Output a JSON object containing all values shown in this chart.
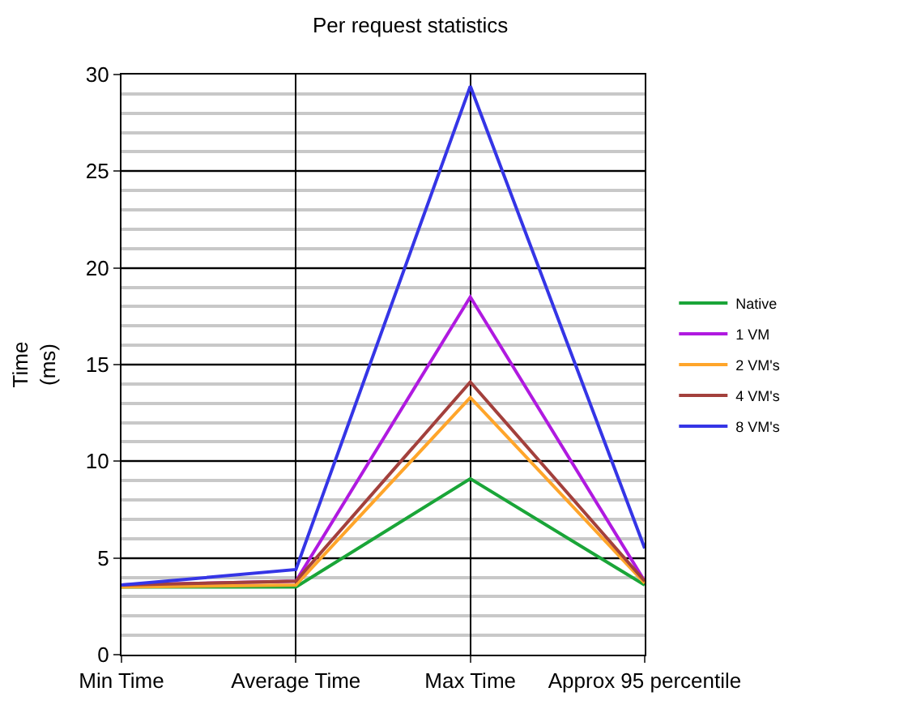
{
  "chart_data": {
    "type": "line",
    "title": "Per request statistics",
    "ylabel": "Time\n(ms)",
    "categories": [
      "Min Time",
      "Average Time",
      "Max Time",
      "Approx 95 percentile"
    ],
    "series": [
      {
        "name": "Native",
        "color": "#1aa538",
        "values": [
          3.5,
          3.5,
          9.1,
          3.6
        ]
      },
      {
        "name": "1 VM",
        "color": "#b01ae0",
        "values": [
          3.6,
          3.8,
          18.5,
          3.8
        ]
      },
      {
        "name": "2 VM's",
        "color": "#ffa52a",
        "values": [
          3.5,
          3.6,
          13.3,
          3.7
        ]
      },
      {
        "name": "4 VM's",
        "color": "#a3403c",
        "values": [
          3.6,
          3.8,
          14.1,
          3.8
        ]
      },
      {
        "name": "8 VM's",
        "color": "#3535e6",
        "values": [
          3.6,
          4.4,
          29.4,
          5.5
        ]
      }
    ],
    "ylim": [
      0,
      30
    ],
    "yticks": [
      0,
      5,
      10,
      15,
      20,
      25,
      30
    ],
    "grid": true,
    "legend": "right",
    "marker": "none",
    "line_style": "solid"
  }
}
